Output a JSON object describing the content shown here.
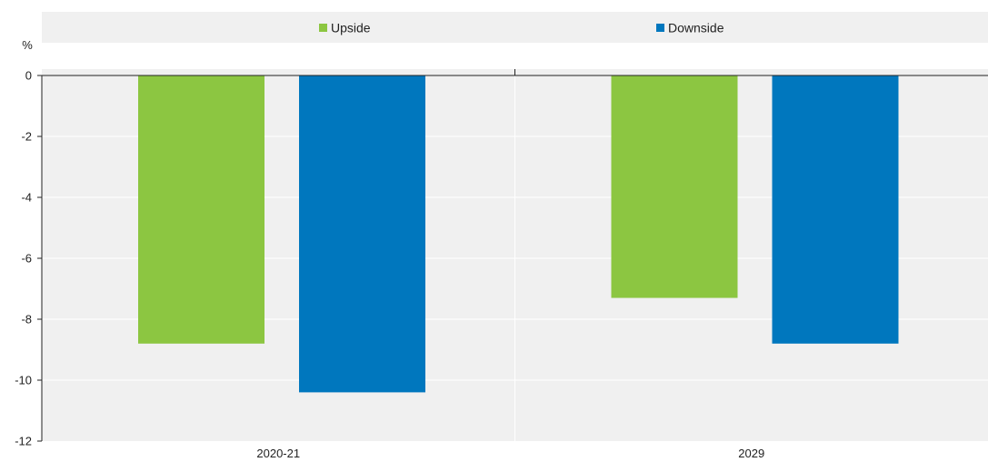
{
  "chart_data": {
    "type": "bar",
    "categories": [
      "2020-21",
      "2029"
    ],
    "series": [
      {
        "name": "Upside",
        "values": [
          -8.8,
          -7.3
        ],
        "color": "#8cc641"
      },
      {
        "name": "Downside",
        "values": [
          -10.4,
          -8.8
        ],
        "color": "#0077be"
      }
    ],
    "ylabel": "%",
    "ylim": [
      -12,
      0
    ],
    "yticks": [
      0,
      -2,
      -4,
      -6,
      -8,
      -10,
      -12
    ],
    "ytick_labels": [
      "0",
      "-2",
      "-4",
      "-6",
      "-8",
      "-10",
      "-12"
    ],
    "legend_position": "top",
    "grid": true,
    "plot_background": "#f0f0f0",
    "gridline_color": "#ffffff"
  }
}
